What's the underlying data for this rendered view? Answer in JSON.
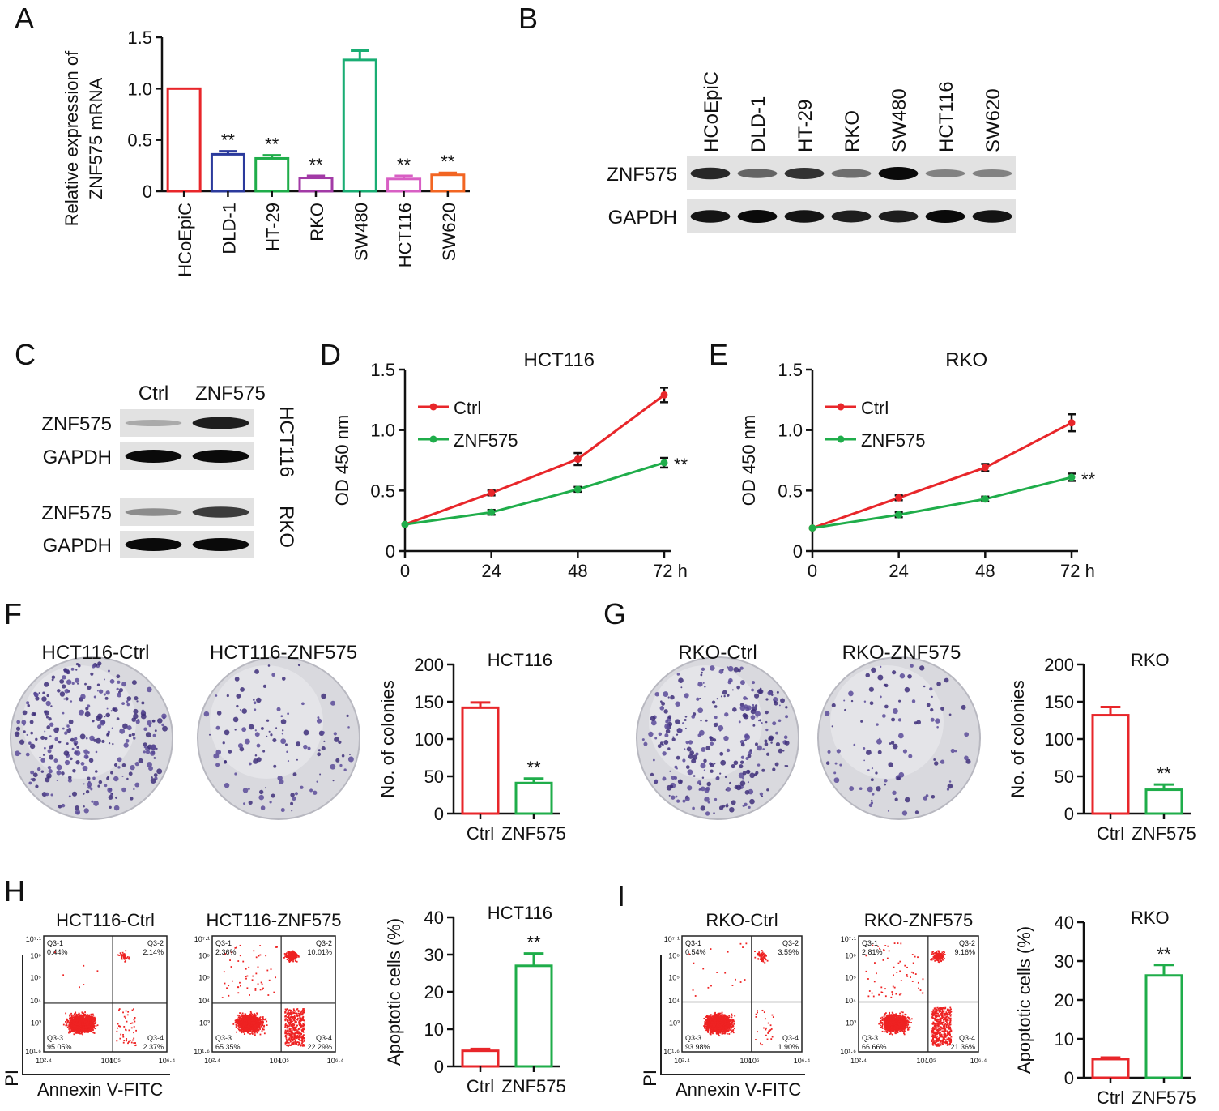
{
  "figure": {
    "panel_letters": [
      "A",
      "B",
      "C",
      "D",
      "E",
      "F",
      "G",
      "H",
      "I"
    ]
  },
  "colors": {
    "HCoEpiC": "#e8262a",
    "DLD-1": "#2b3a9c",
    "HT-29": "#1fad4a",
    "RKO": "#a23aa6",
    "SW480": "#19ad73",
    "HCT116": "#d85fc4",
    "SW620": "#f26522",
    "ctrl": "#e8262a",
    "znf": "#1fad4a",
    "flow": "#ee2222",
    "axis": "#111111"
  },
  "chart_data": [
    {
      "panel": "A",
      "type": "bar",
      "title": "",
      "ylabel_lines": [
        "Relative expression of",
        "ZNF575 mRNA"
      ],
      "xlabel": "",
      "categories": [
        "HCoEpiC",
        "DLD-1",
        "HT-29",
        "RKO",
        "SW480",
        "HCT116",
        "SW620"
      ],
      "values": [
        1.0,
        0.36,
        0.32,
        0.13,
        1.28,
        0.12,
        0.16
      ],
      "errors": [
        0.0,
        0.03,
        0.03,
        0.02,
        0.09,
        0.03,
        0.02
      ],
      "annotations": [
        "",
        "**",
        "**",
        "**",
        "",
        "**",
        "**"
      ],
      "ylim": [
        0,
        1.5
      ],
      "yticks": [
        0,
        0.5,
        1.0,
        1.5
      ],
      "ytick_labels": [
        "0",
        "0.5",
        "1.0",
        "1.5"
      ]
    },
    {
      "panel": "D",
      "type": "line",
      "title": "HCT116",
      "ylabel": "OD 450 nm",
      "x": [
        0,
        24,
        48,
        72
      ],
      "xtick_labels": [
        "0",
        "24",
        "48",
        "72 h"
      ],
      "series": [
        {
          "name": "Ctrl",
          "values": [
            0.22,
            0.48,
            0.76,
            1.29
          ],
          "errors": [
            0.0,
            0.02,
            0.05,
            0.06
          ]
        },
        {
          "name": "ZNF575",
          "values": [
            0.22,
            0.32,
            0.51,
            0.73
          ],
          "errors": [
            0.0,
            0.02,
            0.02,
            0.04
          ]
        }
      ],
      "annotation": "**",
      "ylim": [
        0,
        1.5
      ],
      "yticks": [
        0,
        0.5,
        1.0,
        1.5
      ],
      "ytick_labels": [
        "0",
        "0.5",
        "1.0",
        "1.5"
      ],
      "legend": "top-left"
    },
    {
      "panel": "E",
      "type": "line",
      "title": "RKO",
      "ylabel": "OD 450 nm",
      "x": [
        0,
        24,
        48,
        72
      ],
      "xtick_labels": [
        "0",
        "24",
        "48",
        "72 h"
      ],
      "series": [
        {
          "name": "Ctrl",
          "values": [
            0.19,
            0.44,
            0.69,
            1.06
          ],
          "errors": [
            0.0,
            0.02,
            0.03,
            0.07
          ]
        },
        {
          "name": "ZNF575",
          "values": [
            0.19,
            0.3,
            0.43,
            0.61
          ],
          "errors": [
            0.0,
            0.02,
            0.02,
            0.03
          ]
        }
      ],
      "annotation": "**",
      "ylim": [
        0,
        1.5
      ],
      "yticks": [
        0,
        0.5,
        1.0,
        1.5
      ],
      "ytick_labels": [
        "0",
        "0.5",
        "1.0",
        "1.5"
      ],
      "legend": "top-left"
    },
    {
      "panel": "F",
      "type": "bar",
      "title": "HCT116",
      "ylabel": "No. of colonies",
      "categories": [
        "Ctrl",
        "ZNF575"
      ],
      "values": [
        142,
        41
      ],
      "errors": [
        7,
        6
      ],
      "annotations": [
        "",
        "**"
      ],
      "ylim": [
        0,
        200
      ],
      "yticks": [
        0,
        50,
        100,
        150,
        200
      ],
      "ytick_labels": [
        "0",
        "50",
        "100",
        "150",
        "200"
      ]
    },
    {
      "panel": "G",
      "type": "bar",
      "title": "RKO",
      "ylabel": "No. of colonies",
      "categories": [
        "Ctrl",
        "ZNF575"
      ],
      "values": [
        132,
        32
      ],
      "errors": [
        11,
        7
      ],
      "annotations": [
        "",
        "**"
      ],
      "ylim": [
        0,
        200
      ],
      "yticks": [
        0,
        50,
        100,
        150,
        200
      ],
      "ytick_labels": [
        "0",
        "50",
        "100",
        "150",
        "200"
      ]
    },
    {
      "panel": "H",
      "type": "bar",
      "title": "HCT116",
      "ylabel": "Apoptotic cells (%)",
      "categories": [
        "Ctrl",
        "ZNF575"
      ],
      "values": [
        4.2,
        27.0
      ],
      "errors": [
        0.5,
        3.3
      ],
      "annotations": [
        "",
        "**"
      ],
      "ylim": [
        0,
        40
      ],
      "yticks": [
        0,
        10,
        20,
        30,
        40
      ],
      "ytick_labels": [
        "0",
        "10",
        "20",
        "30",
        "40"
      ]
    },
    {
      "panel": "I",
      "type": "bar",
      "title": "RKO",
      "ylabel": "Apoptotic cells (%)",
      "categories": [
        "Ctrl",
        "ZNF575"
      ],
      "values": [
        4.8,
        26.3
      ],
      "errors": [
        0.4,
        2.7
      ],
      "annotations": [
        "",
        "**"
      ],
      "ylim": [
        0,
        40
      ],
      "yticks": [
        0,
        10,
        20,
        30,
        40
      ],
      "ytick_labels": [
        "0",
        "10",
        "20",
        "30",
        "40"
      ]
    }
  ],
  "blots": [
    {
      "panel": "B",
      "lane_labels": [
        "HCoEpiC",
        "DLD-1",
        "HT-29",
        "RKO",
        "SW480",
        "HCT116",
        "SW620"
      ],
      "rows": [
        {
          "label": "ZNF575",
          "intensity": [
            0.85,
            0.55,
            0.8,
            0.5,
            1.0,
            0.4,
            0.4
          ]
        },
        {
          "label": "GAPDH",
          "intensity": [
            0.95,
            1.0,
            0.95,
            0.9,
            0.9,
            1.0,
            0.95
          ]
        }
      ]
    },
    {
      "panel": "C",
      "lane_labels": [
        "Ctrl",
        "ZNF575"
      ],
      "groups": [
        {
          "cell_line": "HCT116",
          "rows": [
            {
              "label": "ZNF575",
              "intensity": [
                0.2,
                0.9
              ]
            },
            {
              "label": "GAPDH",
              "intensity": [
                1.0,
                1.0
              ]
            }
          ]
        },
        {
          "cell_line": "RKO",
          "rows": [
            {
              "label": "ZNF575",
              "intensity": [
                0.35,
                0.75
              ]
            },
            {
              "label": "GAPDH",
              "intensity": [
                1.0,
                1.0
              ]
            }
          ]
        }
      ]
    }
  ],
  "colony_plates": [
    {
      "panel": "F",
      "label": "HCT116-Ctrl",
      "density": 1.0
    },
    {
      "panel": "F",
      "label": "HCT116-ZNF575",
      "density": 0.3
    },
    {
      "panel": "G",
      "label": "RKO-Ctrl",
      "density": 0.9
    },
    {
      "panel": "G",
      "label": "RKO-ZNF575",
      "density": 0.25
    }
  ],
  "flow_plots": [
    {
      "panel": "H",
      "label": "HCT116-Ctrl",
      "q1": "Q3-1\n0.44%",
      "q2": "Q3-2\n2.14%",
      "q3": "Q3-3\n95.05%",
      "q4": "Q3-4\n2.37%",
      "xticks": [
        "10²·⁴",
        "10⁴",
        "10⁵",
        "10⁶·⁴"
      ],
      "yticks": [
        "10⁷·¹",
        "10⁶",
        "10⁵",
        "10⁴",
        "10³",
        "10¹·⁶"
      ],
      "xlabel": "Annexin V-FITC",
      "ylabel": "PI",
      "show_axis_labels": true
    },
    {
      "panel": "H",
      "label": "HCT116-ZNF575",
      "q1": "Q3-1\n2.36%",
      "q2": "Q3-2\n10.01%",
      "q3": "Q3-3\n65.35%",
      "q4": "Q3-4\n22.29%",
      "xticks": [
        "10²·⁴",
        "10⁴",
        "10⁵",
        "10⁶·⁴"
      ],
      "yticks": [
        "10⁷·¹",
        "10⁶",
        "10⁵",
        "10⁴",
        "10³",
        "10¹·⁶"
      ],
      "xlabel": "",
      "ylabel": "",
      "show_axis_labels": false
    },
    {
      "panel": "I",
      "label": "RKO-Ctrl",
      "q1": "Q3-1\n0.54%",
      "q2": "Q3-2\n3.59%",
      "q3": "Q3-3\n93.98%",
      "q4": "Q3-4\n1.90%",
      "xticks": [
        "10²·⁴",
        "10⁴",
        "10⁵",
        "10⁶·⁴"
      ],
      "yticks": [
        "10⁷·¹",
        "10⁶",
        "10⁵",
        "10⁴",
        "10³",
        "10¹·⁶"
      ],
      "xlabel": "Annexin V-FITC",
      "ylabel": "PI",
      "show_axis_labels": true
    },
    {
      "panel": "I",
      "label": "RKO-ZNF575",
      "q1": "Q3-1\n2.81%",
      "q2": "Q3-2\n9.16%",
      "q3": "Q3-3\n66.66%",
      "q4": "Q3-4\n21.36%",
      "xticks": [
        "10²·⁴",
        "10⁴",
        "10⁵",
        "10⁶·⁴"
      ],
      "yticks": [
        "10⁷·¹",
        "10⁶",
        "10⁵",
        "10⁴",
        "10³",
        "10¹·⁶"
      ],
      "xlabel": "",
      "ylabel": "",
      "show_axis_labels": false
    }
  ]
}
